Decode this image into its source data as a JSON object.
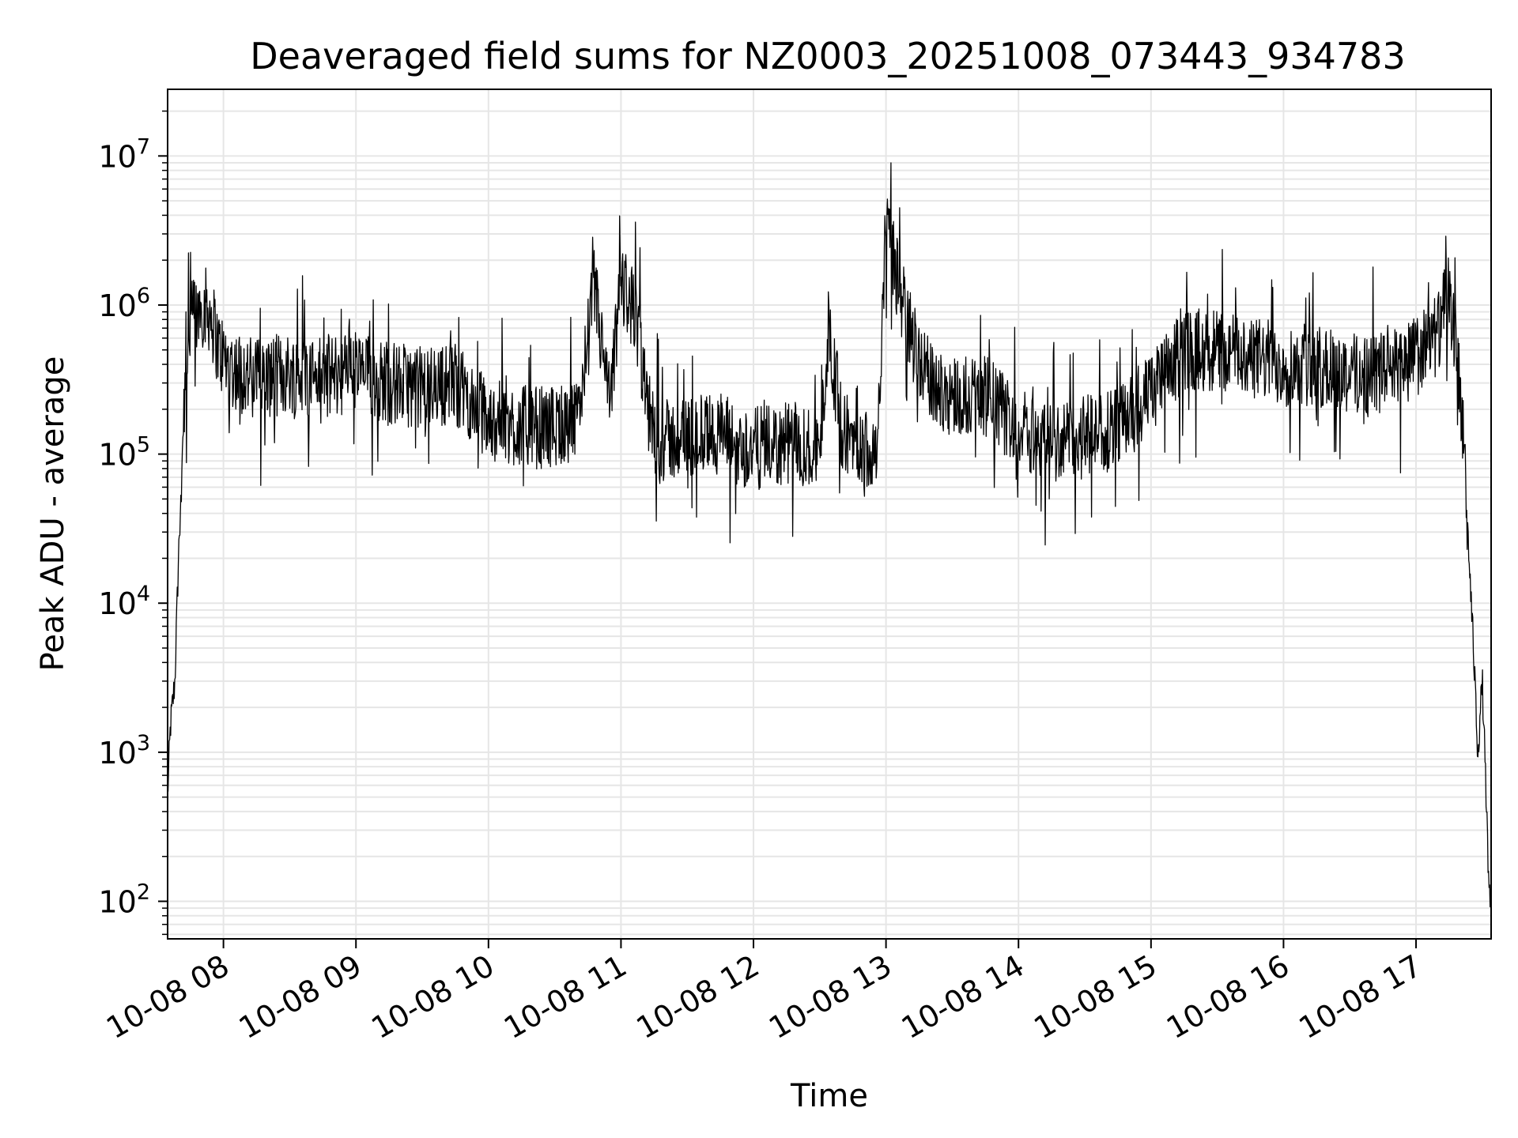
{
  "chart_data": {
    "type": "line",
    "title": "Deaveraged field sums for NZ0003_20251008_073443_934783",
    "xlabel": "Time",
    "ylabel": "Peak ADU - average",
    "yscale": "log",
    "grid": true,
    "x_tick_labels": [
      "10-08 08",
      "10-08 09",
      "10-08 10",
      "10-08 11",
      "10-08 12",
      "10-08 13",
      "10-08 14",
      "10-08 15",
      "10-08 16",
      "10-08 17"
    ],
    "y_tick_labels": [
      {
        "base": "10",
        "exp": "2"
      },
      {
        "base": "10",
        "exp": "3"
      },
      {
        "base": "10",
        "exp": "4"
      },
      {
        "base": "10",
        "exp": "5"
      },
      {
        "base": "10",
        "exp": "6"
      },
      {
        "base": "10",
        "exp": "7"
      }
    ],
    "ylim": [
      56,
      28000000
    ],
    "xlim": [
      "2025-10-08 07:34:43",
      "2025-10-08 17:34:00"
    ],
    "series": [
      {
        "color": "#000000",
        "x": [
          "2025-10-08 07:34:43",
          "2025-10-08 07:36",
          "2025-10-08 07:38",
          "2025-10-08 07:40",
          "2025-10-08 07:42",
          "2025-10-08 07:44",
          "2025-10-08 07:47",
          "2025-10-08 07:50",
          "2025-10-08 07:54",
          "2025-10-08 07:58",
          "2025-10-08 08:02",
          "2025-10-08 08:08",
          "2025-10-08 08:15",
          "2025-10-08 08:30",
          "2025-10-08 08:45",
          "2025-10-08 09:00",
          "2025-10-08 09:15",
          "2025-10-08 09:30",
          "2025-10-08 09:45",
          "2025-10-08 10:00",
          "2025-10-08 10:20",
          "2025-10-08 10:40",
          "2025-10-08 10:48",
          "2025-10-08 10:55",
          "2025-10-08 11:00",
          "2025-10-08 11:06",
          "2025-10-08 11:12",
          "2025-10-08 11:17",
          "2025-10-08 11:30",
          "2025-10-08 11:45",
          "2025-10-08 11:53",
          "2025-10-08 12:05",
          "2025-10-08 12:20",
          "2025-10-08 12:30",
          "2025-10-08 12:34",
          "2025-10-08 12:40",
          "2025-10-08 12:50",
          "2025-10-08 12:56",
          "2025-10-08 13:00",
          "2025-10-08 13:05",
          "2025-10-08 13:12",
          "2025-10-08 13:20",
          "2025-10-08 13:30",
          "2025-10-08 13:45",
          "2025-10-08 14:00",
          "2025-10-08 14:15",
          "2025-10-08 14:30",
          "2025-10-08 14:45",
          "2025-10-08 15:00",
          "2025-10-08 15:15",
          "2025-10-08 15:30",
          "2025-10-08 15:45",
          "2025-10-08 16:00",
          "2025-10-08 16:15",
          "2025-10-08 16:30",
          "2025-10-08 16:45",
          "2025-10-08 17:00",
          "2025-10-08 17:10",
          "2025-10-08 17:15",
          "2025-10-08 17:20",
          "2025-10-08 17:24",
          "2025-10-08 17:26",
          "2025-10-08 17:28",
          "2025-10-08 17:30",
          "2025-10-08 17:32",
          "2025-10-08 17:33"
        ],
        "y": [
          500,
          1500,
          3000,
          30000,
          200000,
          600000,
          900000,
          1000000,
          900000,
          500000,
          400000,
          350000,
          320000,
          350000,
          330000,
          360000,
          300000,
          280000,
          300000,
          170000,
          150000,
          160000,
          1300000,
          200000,
          1500000,
          900000,
          200000,
          120000,
          130000,
          140000,
          110000,
          110000,
          120000,
          100000,
          700000,
          150000,
          110000,
          120000,
          3500000,
          1500000,
          600000,
          300000,
          250000,
          250000,
          150000,
          120000,
          130000,
          150000,
          250000,
          500000,
          500000,
          450000,
          400000,
          380000,
          350000,
          350000,
          450000,
          650000,
          1200000,
          300000,
          20000,
          5000,
          1000,
          3000,
          400,
          100
        ]
      }
    ]
  }
}
